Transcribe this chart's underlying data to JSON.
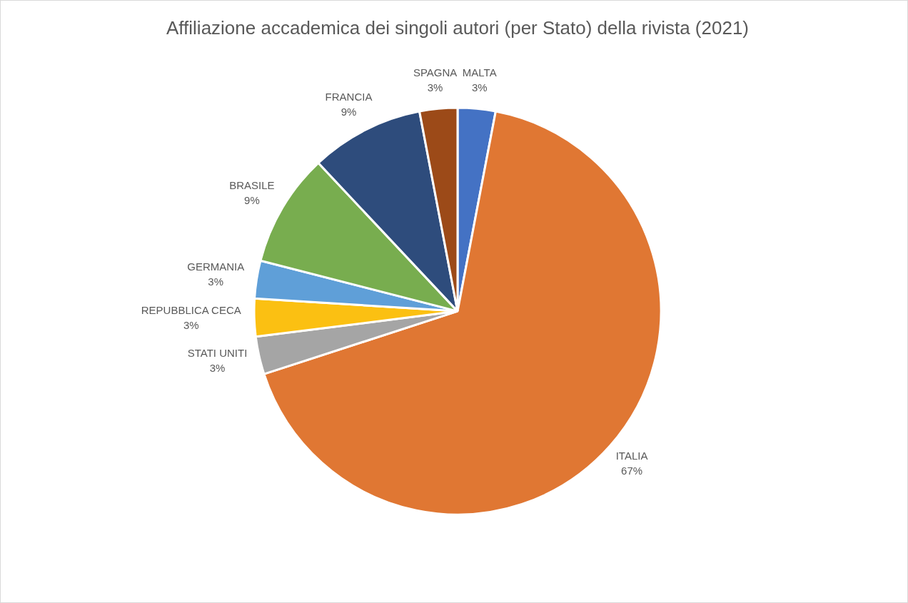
{
  "chart_data": {
    "type": "pie",
    "title": "Affiliazione accademica dei singoli autori (per Stato) della rivista (2021)",
    "categories": [
      "MALTA",
      "ITALIA",
      "STATI UNITI",
      "REPUBBLICA CECA",
      "GERMANIA",
      "BRASILE",
      "FRANCIA",
      "SPAGNA"
    ],
    "values": [
      3,
      67,
      3,
      3,
      3,
      9,
      9,
      3
    ],
    "value_labels": [
      "3%",
      "67%",
      "3%",
      "3%",
      "3%",
      "9%",
      "9%",
      "3%"
    ],
    "colors": [
      "#4472c4",
      "#e07733",
      "#a5a5a5",
      "#fbc012",
      "#5f9fd8",
      "#78ad4f",
      "#2e4c7c",
      "#9c4a18"
    ]
  }
}
